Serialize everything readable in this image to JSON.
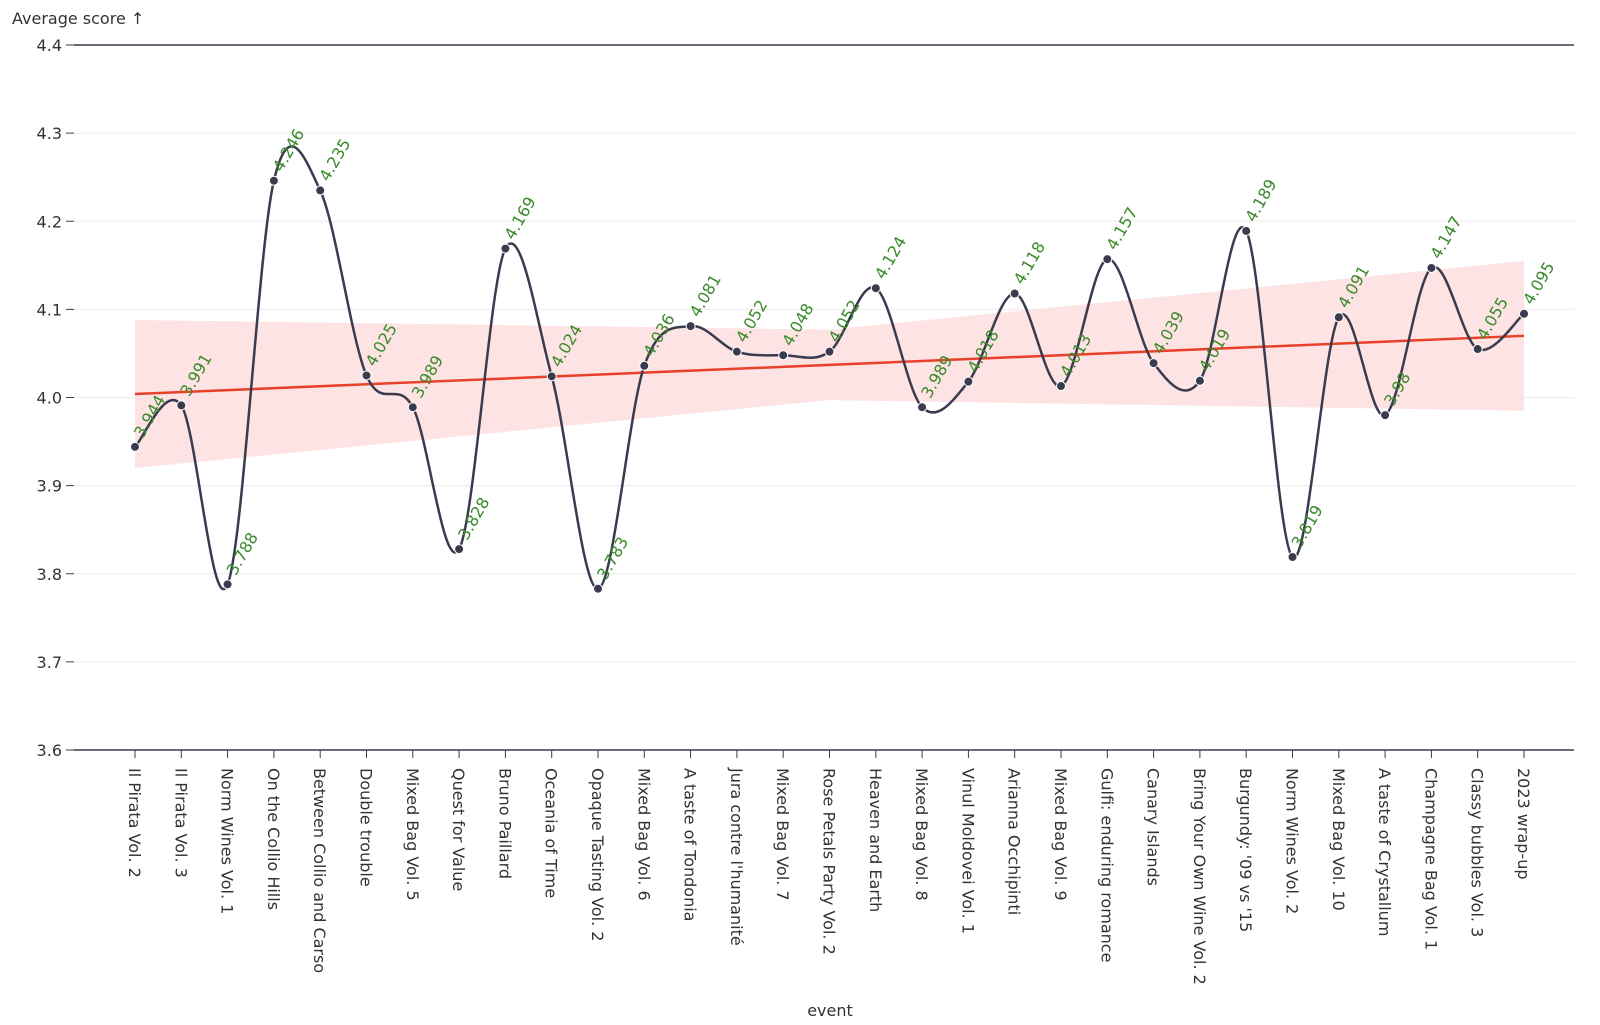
{
  "chart_data": {
    "type": "line",
    "y_label": "Average score ↑",
    "x_label": "event",
    "categories": [
      "Il Pirata Vol. 2",
      "Il Pirata Vol. 3",
      "Norm Wines Vol. 1",
      "On the Collio Hills",
      "Between Collio and Carso",
      "Double trouble",
      "Mixed Bag Vol. 5",
      "Quest for Value",
      "Bruno Paillard",
      "Oceania of Time",
      "Opaque Tasting Vol. 2",
      "Mixed Bag Vol. 6",
      "A taste of Tondonia",
      "Jura contre l'humanité",
      "Mixed Bag Vol. 7",
      "Rose Petals Party Vol. 2",
      "Heaven and Earth",
      "Mixed Bag Vol. 8",
      "Vinul Moldovei Vol. 1",
      "Arianna Occhipinti",
      "Mixed Bag Vol. 9",
      "Gulfi: enduring romance",
      "Canary Islands",
      "Bring Your Own Wine Vol. 2",
      "Burgundy: '09 vs '15",
      "Norm Wines Vol. 2",
      "Mixed Bag Vol. 10",
      "A taste of Crystallum",
      "Champagne Bag Vol. 1",
      "Classy bubbles Vol. 3",
      "2023 wrap-up"
    ],
    "values": [
      3.944,
      3.991,
      3.788,
      4.246,
      4.235,
      4.025,
      3.989,
      3.828,
      4.169,
      4.024,
      3.783,
      4.036,
      4.081,
      4.052,
      4.048,
      4.052,
      4.124,
      3.989,
      4.018,
      4.118,
      4.013,
      4.157,
      4.039,
      4.019,
      4.189,
      3.819,
      4.091,
      3.98,
      4.147,
      4.055,
      4.095
    ],
    "color": "#3b3b4f",
    "label_color": "#3a8a2a",
    "trend": {
      "color": "#e8412a",
      "band_color": "#fde3e3",
      "at": [
        0,
        15,
        30
      ],
      "values": [
        4.004,
        4.037,
        4.07
      ],
      "lower": [
        3.92,
        3.997,
        3.985
      ],
      "upper": [
        4.088,
        4.077,
        4.155
      ]
    },
    "ylim": [
      3.6,
      4.4
    ],
    "yticks": [
      3.6,
      3.7,
      3.8,
      3.9,
      {
        "value": 4.0,
        "label": "4.0"
      },
      4.1,
      4.2,
      4.3,
      4.4
    ],
    "grid": true
  }
}
